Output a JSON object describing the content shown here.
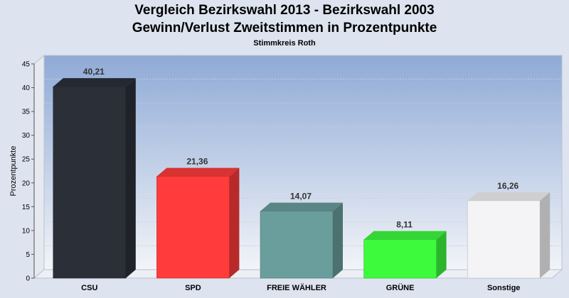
{
  "chart_data": {
    "type": "bar",
    "title": "Vergleich Bezirkswahl 2013 - Bezirkswahl 2003",
    "subtitle": "Gewinn/Verlust Zweitstimmen in Prozentpunkte",
    "note": "Stimmkreis Roth",
    "ylabel": "Prozentpunkte",
    "xlabel": "",
    "ylim": [
      0,
      45
    ],
    "yticks": [
      0,
      5,
      10,
      15,
      20,
      25,
      30,
      35,
      40,
      45
    ],
    "categories": [
      "CSU",
      "SPD",
      "FREIE WÄHLER",
      "GRÜNE",
      "Sonstige"
    ],
    "values": [
      40.21,
      21.36,
      14.07,
      8.11,
      16.26
    ],
    "value_labels": [
      "40,21",
      "21,36",
      "14,07",
      "8,11",
      "16,26"
    ],
    "colors": [
      "#2b2f38",
      "#ff3b3b",
      "#6a9e9c",
      "#3dfa3d",
      "#f4f4f6"
    ],
    "grid": true
  }
}
